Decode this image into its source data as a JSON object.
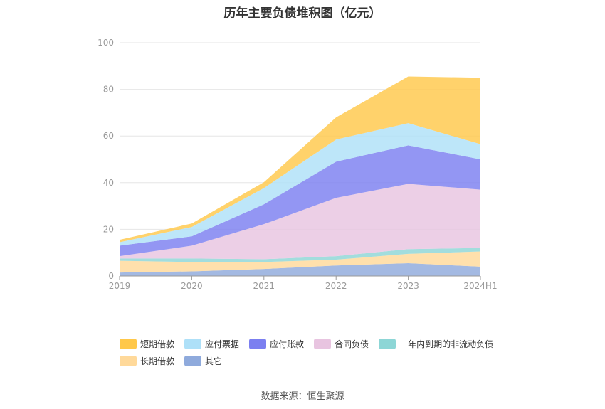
{
  "chart_data": {
    "type": "area",
    "title": "历年主要负债堆积图（亿元）",
    "stacked": true,
    "x": [
      "2019",
      "2020",
      "2021",
      "2022",
      "2023",
      "2024H1"
    ],
    "ylim": [
      0,
      100
    ],
    "yticks": [
      "0",
      "20",
      "40",
      "60",
      "80",
      "100"
    ],
    "grid": true,
    "legend_position": "bottom",
    "series": [
      {
        "name": "其它",
        "color": "#8faadc",
        "values": [
          1.5,
          2.0,
          3.0,
          4.5,
          5.5,
          4.0
        ]
      },
      {
        "name": "长期借款",
        "color": "#ffd99a",
        "values": [
          5.0,
          4.0,
          3.0,
          2.5,
          4.0,
          6.5
        ]
      },
      {
        "name": "一年内到期的非流动负债",
        "color": "#8dd6d6",
        "values": [
          1.0,
          1.5,
          1.2,
          1.5,
          2.0,
          1.5
        ]
      },
      {
        "name": "合同负债",
        "color": "#e8c4e0",
        "values": [
          1.0,
          5.5,
          15.0,
          25.0,
          28.0,
          25.0
        ]
      },
      {
        "name": "应付账款",
        "color": "#7b7ff0",
        "values": [
          4.5,
          4.0,
          8.5,
          15.5,
          16.5,
          13.0
        ]
      },
      {
        "name": "应付票据",
        "color": "#aee0f8",
        "values": [
          1.5,
          4.0,
          7.0,
          9.5,
          9.5,
          6.5
        ]
      },
      {
        "name": "短期借款",
        "color": "#ffc84a",
        "values": [
          1.0,
          1.5,
          2.5,
          9.5,
          20.0,
          28.5
        ]
      }
    ],
    "legend_order": [
      "短期借款",
      "应付票据",
      "应付账款",
      "合同负债",
      "一年内到期的非流动负债",
      "长期借款",
      "其它"
    ]
  },
  "source": "数据来源：恒生聚源"
}
